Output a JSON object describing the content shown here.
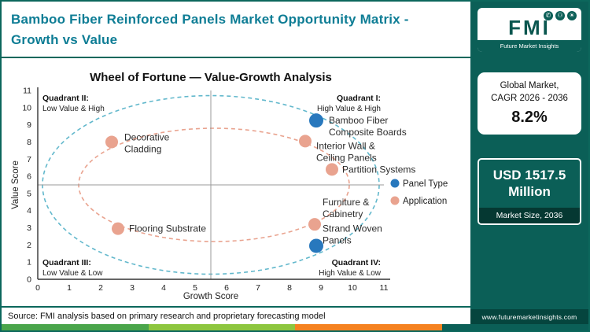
{
  "header": {
    "title_line1": "Bamboo Fiber Reinforced Panels Market  Opportunity Matrix -",
    "title_line2": "Growth vs Value"
  },
  "sidebar": {
    "logo": {
      "abbr": "FMI",
      "name": "Future Market Insights",
      "icons": [
        "phone-icon",
        "person-icon",
        "bulb-icon"
      ]
    },
    "cagr_card": {
      "line1": "Global Market,",
      "line2": "CAGR 2026 - 2036",
      "value": "8.2%"
    },
    "size_card": {
      "value": "USD 1517.5 Million",
      "label": "Market Size, 2036"
    },
    "website": "www.futuremarketinsights.com"
  },
  "source": "Source: FMI analysis based on primary research and proprietary forecasting model",
  "colors": {
    "brand_teal": "#0b5f57",
    "title_teal": "#0e7d95",
    "panel_type_blue": "#2878bd",
    "application_salmon": "#e9a38f",
    "stripe_green": "#4aa54b",
    "stripe_lime": "#8dc63f",
    "stripe_orange": "#f58220"
  },
  "chart_data": {
    "type": "scatter",
    "title": "Wheel of Fortune — Value-Growth Analysis",
    "xlabel": "Growth Score",
    "ylabel": "Value Score",
    "xlim": [
      0,
      11
    ],
    "ylim": [
      0,
      11
    ],
    "ticks": [
      0,
      1,
      2,
      3,
      4,
      5,
      6,
      7,
      8,
      9,
      10,
      11
    ],
    "grid": false,
    "legend_position": "right",
    "divider": {
      "x": 5.5,
      "y": 5.5
    },
    "quadrant_labels": [
      {
        "title": "Quadrant II:",
        "subtitle": "Low Value & High",
        "corner": "top-left"
      },
      {
        "title": "Quadrant I:",
        "subtitle": "High Value & High",
        "corner": "top-right"
      },
      {
        "title": "Quadrant III:",
        "subtitle": "Low Value & Low",
        "corner": "bottom-left"
      },
      {
        "title": "Quadrant IV:",
        "subtitle": "High Value & Low",
        "corner": "bottom-right"
      }
    ],
    "rings": [
      {
        "name": "panel-type-ring",
        "color": "#62b8cc",
        "cx": 5.5,
        "cy": 5.5,
        "rx": 5.35,
        "ry": 5.2
      },
      {
        "name": "application-ring",
        "color": "#e9a38f",
        "cx": 5.6,
        "cy": 5.5,
        "rx": 4.3,
        "ry": 3.3
      }
    ],
    "legend": [
      {
        "label": "Panel Type",
        "color": "#2878bd"
      },
      {
        "label": "Application",
        "color": "#e9a38f"
      }
    ],
    "series": [
      {
        "name": "Panel Type",
        "color": "#2878bd",
        "dot_radius": 9,
        "points": [
          {
            "label": "Bamboo Fiber\nComposite Boards",
            "x": 8.85,
            "y": 9.25,
            "label_dx": 16,
            "label_dy": 4
          },
          {
            "label": "Strand Woven\nPanels",
            "x": 8.85,
            "y": 1.95,
            "label_dx": 8,
            "label_dy": -18
          }
        ]
      },
      {
        "name": "Application",
        "color": "#e9a38f",
        "dot_radius": 8,
        "points": [
          {
            "label": "Decorative\nCladding",
            "x": 2.35,
            "y": 8.0,
            "label_dx": 16,
            "label_dy": -2
          },
          {
            "label": "Interior Wall &\nCeiling Panels",
            "x": 8.5,
            "y": 8.05,
            "label_dx": 14,
            "label_dy": 10
          },
          {
            "label": "Partition Systems",
            "x": 9.35,
            "y": 6.4,
            "label_dx": 13,
            "label_dy": 4
          },
          {
            "label": "Flooring Substrate",
            "x": 2.55,
            "y": 2.95,
            "label_dx": 14,
            "label_dy": 4
          },
          {
            "label": "Furniture &\nCabinetry",
            "x": 8.8,
            "y": 3.2,
            "label_dx": 10,
            "label_dy": -24
          }
        ]
      }
    ]
  }
}
